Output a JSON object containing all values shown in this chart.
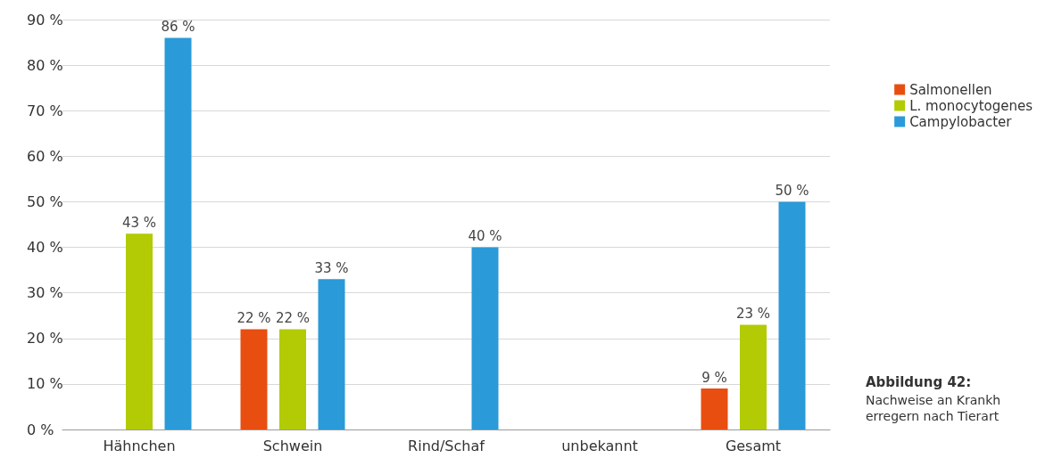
{
  "chart_data": {
    "type": "bar",
    "categories": [
      "Hähnchen",
      "Schwein",
      "Rind/Schaf",
      "unbekannt",
      "Gesamt"
    ],
    "series": [
      {
        "name": "Salmonellen",
        "color": "#e84e10",
        "values": [
          null,
          22,
          null,
          null,
          9
        ],
        "value_labels": [
          null,
          "22 %",
          null,
          null,
          "9 %"
        ]
      },
      {
        "name": "L. monocytogenes",
        "color": "#b2cb05",
        "values": [
          43,
          22,
          null,
          null,
          23
        ],
        "value_labels": [
          "43 %",
          "22 %",
          null,
          null,
          "23 %"
        ]
      },
      {
        "name": "Campylobacter",
        "color": "#2a9ad8",
        "values": [
          86,
          33,
          40,
          null,
          50
        ],
        "value_labels": [
          "86 %",
          "33 %",
          "40 %",
          null,
          "50 %"
        ]
      }
    ],
    "ylim": [
      0,
      90
    ],
    "yticks": [
      {
        "value": 0,
        "label": "0 %"
      },
      {
        "value": 10,
        "label": "10 %"
      },
      {
        "value": 20,
        "label": "20 %"
      },
      {
        "value": 30,
        "label": "30 %"
      },
      {
        "value": 40,
        "label": "40 %"
      },
      {
        "value": 50,
        "label": "50 %"
      },
      {
        "value": 60,
        "label": "60 %"
      },
      {
        "value": 70,
        "label": "70 %"
      },
      {
        "value": 80,
        "label": "80 %"
      },
      {
        "value": 90,
        "label": "90 %"
      }
    ],
    "grid": "y",
    "legend": "right",
    "annotations": [
      "Abbildung 42:",
      "Nachweise an Krankh\nerregern nach Tierart"
    ]
  }
}
